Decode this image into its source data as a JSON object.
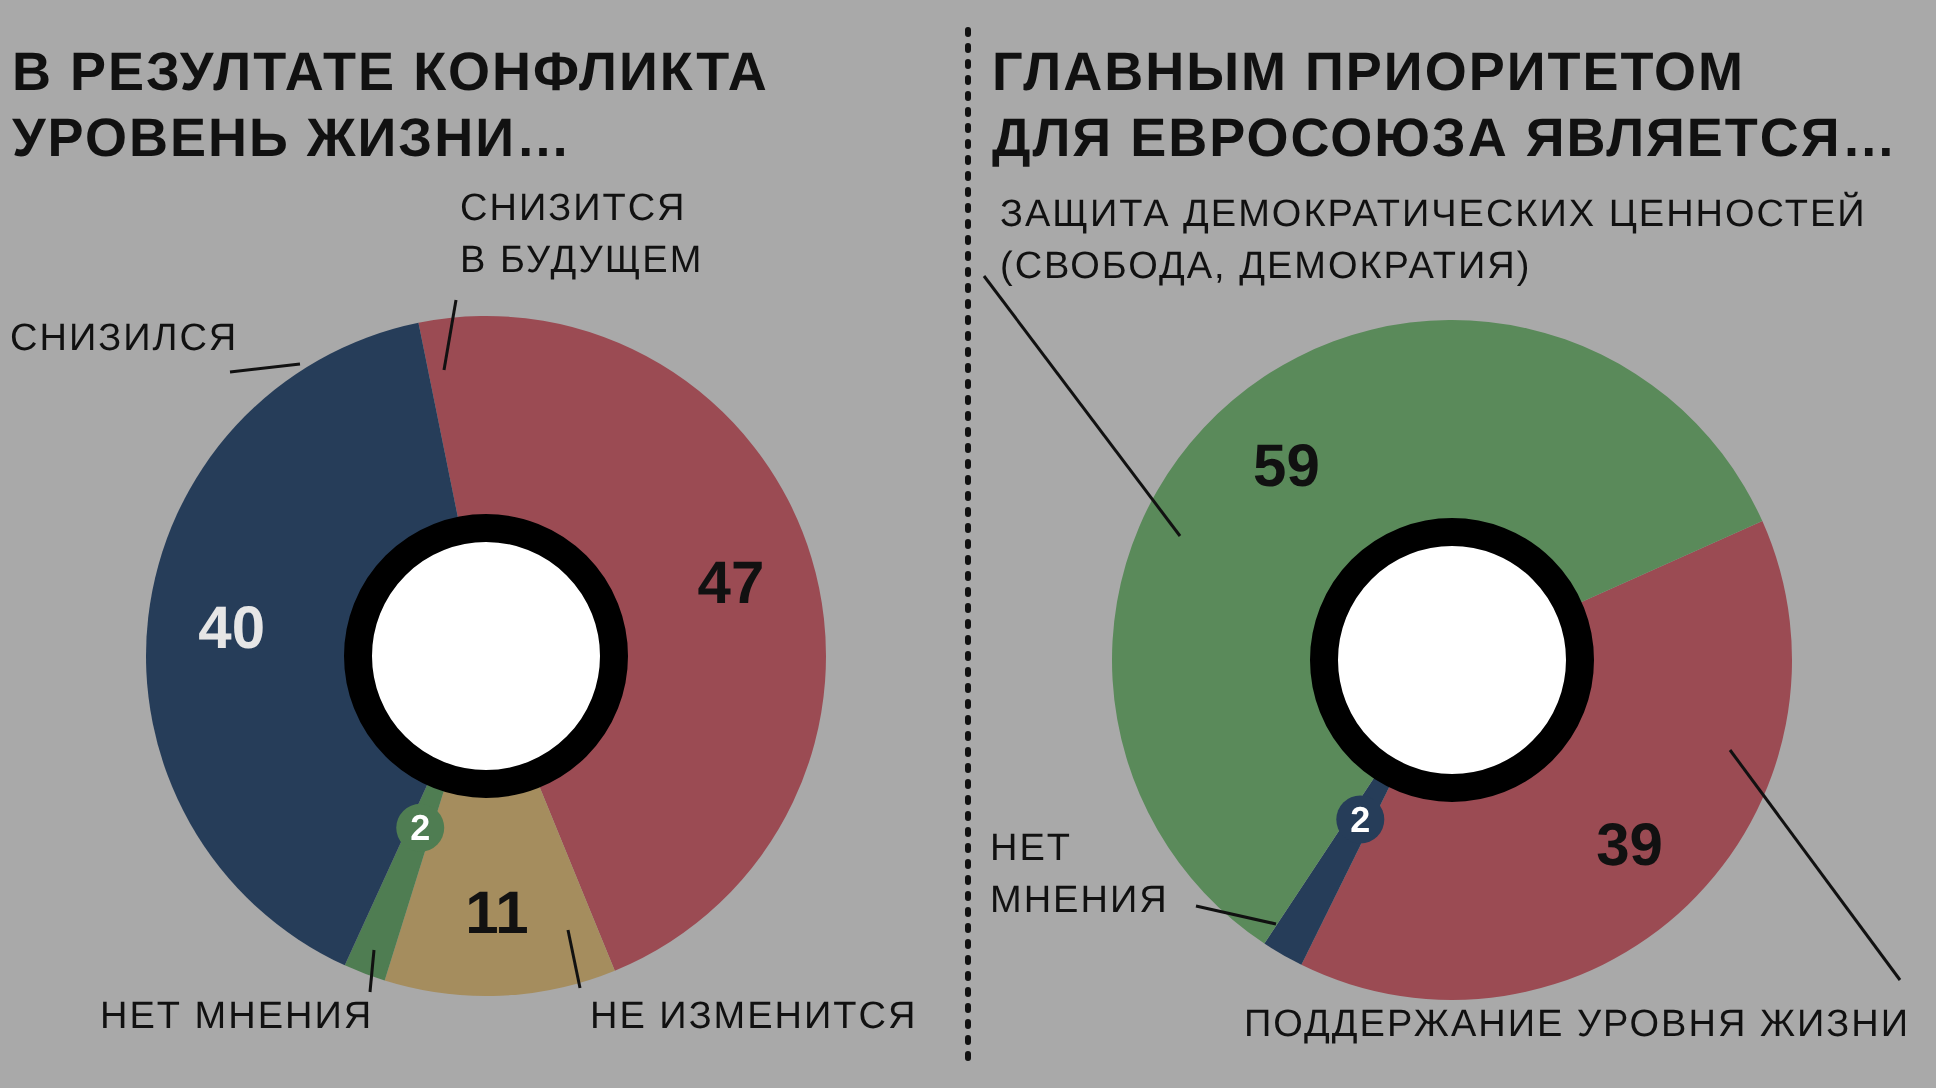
{
  "chart_data": [
    {
      "type": "donut",
      "title": "В РЕЗУЛТАТЕ КОНФЛИКТА УРОВЕНЬ ЖИЗНИ…",
      "categories": [
        "СНИЗИТСЯ В БУДУЩЕМ",
        "НЕ ИЗМЕНИТСЯ",
        "НЕТ МНЕНИЯ",
        "СНИЗИЛСЯ"
      ],
      "values": [
        47,
        11,
        2,
        40
      ],
      "colors": [
        "#9b4b53",
        "#a58d5e",
        "#4f7d52",
        "#263d59"
      ],
      "data_labels": true
    },
    {
      "type": "donut",
      "title": "ГЛАВНЫМ ПРИОРИТЕТОМ ДЛЯ ЕВРОСОЮЗА ЯВЛЯЕТСЯ…",
      "categories": [
        "ПОДДЕРЖАНИЕ УРОВНЯ ЖИЗНИ",
        "НЕТ МНЕНИЯ",
        "ЗАЩИТА ДЕМОКРАТИЧЕСКИХ ЦЕННОСТЕЙ (СВОБОДА, ДЕМОКРАТИЯ)"
      ],
      "values": [
        39,
        2,
        59
      ],
      "colors": [
        "#9b4b53",
        "#263d59",
        "#5a8a5a"
      ],
      "data_labels": true
    }
  ]
}
